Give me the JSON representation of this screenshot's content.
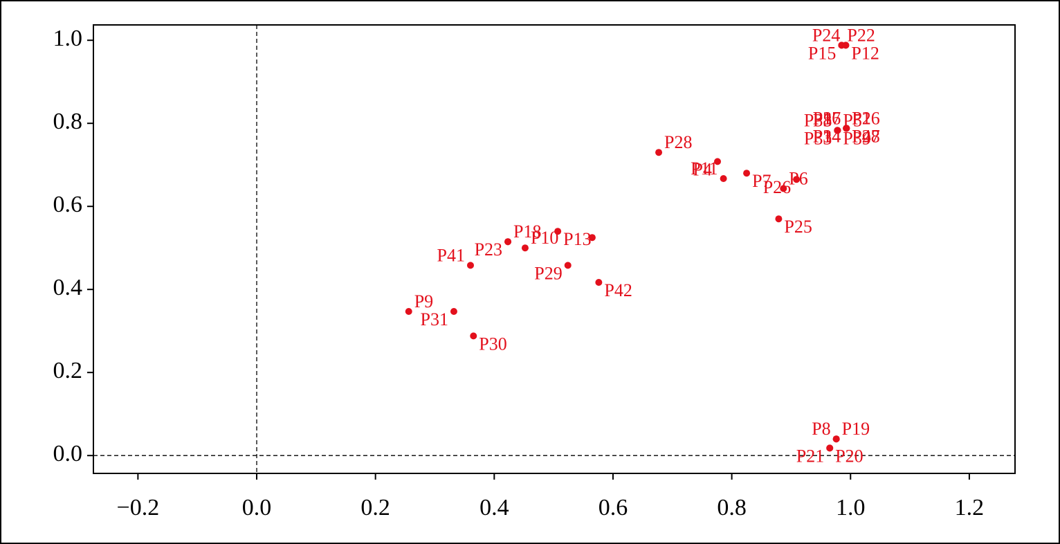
{
  "chart_data": {
    "type": "scatter",
    "color": "#e3101c",
    "labels": [
      "P22",
      "P15",
      "P12",
      "P24",
      "P28",
      "P4",
      "P7",
      "P11",
      "P6",
      "P26",
      "P25",
      "P3",
      "P5",
      "P33",
      "P39",
      "P38",
      "P2",
      "P14",
      "P48",
      "P36",
      "P16",
      "P34",
      "P27",
      "P17",
      "P18",
      "P23",
      "P13",
      null,
      "P10",
      "P29",
      "P42",
      "P41",
      "P9",
      "P31",
      "P30",
      "P8",
      "P19",
      "P21",
      "P20"
    ],
    "x": [
      0.985,
      0.985,
      0.992,
      0.992,
      0.677,
      0.776,
      0.825,
      0.786,
      0.887,
      0.909,
      0.879,
      0.978,
      0.978,
      0.978,
      0.978,
      0.978,
      0.993,
      0.993,
      0.993,
      0.993,
      0.993,
      0.993,
      0.993,
      0.993,
      0.423,
      0.423,
      0.507,
      0.565,
      0.452,
      0.524,
      0.576,
      0.36,
      0.256,
      0.332,
      0.365,
      0.976,
      0.976,
      0.965,
      0.965
    ],
    "values": [
      0.988,
      0.988,
      0.988,
      0.988,
      0.73,
      0.708,
      0.68,
      0.667,
      0.643,
      0.665,
      0.57,
      0.783,
      0.783,
      0.783,
      0.783,
      0.783,
      0.788,
      0.788,
      0.788,
      0.788,
      0.788,
      0.788,
      0.788,
      0.788,
      0.515,
      0.515,
      0.54,
      0.525,
      0.5,
      0.458,
      0.417,
      0.458,
      0.347,
      0.347,
      0.288,
      0.04,
      0.04,
      0.018,
      0.018
    ],
    "xlim": [
      -0.275,
      1.277
    ],
    "ylim": [
      -0.043,
      1.037
    ],
    "xticks": [
      {
        "value": -0.2,
        "label": "−0.2"
      },
      {
        "value": 0,
        "label": "0.0"
      },
      {
        "value": 0.2,
        "label": "0.2"
      },
      {
        "value": 0.4,
        "label": "0.4"
      },
      {
        "value": 0.6,
        "label": "0.6"
      },
      {
        "value": 0.8,
        "label": "0.8"
      },
      {
        "value": 1,
        "label": "1.0"
      },
      {
        "value": 1.2,
        "label": "1.2"
      }
    ],
    "yticks": [
      {
        "value": 0,
        "label": "0.0"
      },
      {
        "value": 0.2,
        "label": "0.2"
      },
      {
        "value": 0.4,
        "label": "0.4"
      },
      {
        "value": 0.6,
        "label": "0.6"
      },
      {
        "value": 0.8,
        "label": "0.8"
      },
      {
        "value": 1,
        "label": "1.0"
      }
    ],
    "hlines": [
      0
    ],
    "vlines": [
      0
    ]
  }
}
